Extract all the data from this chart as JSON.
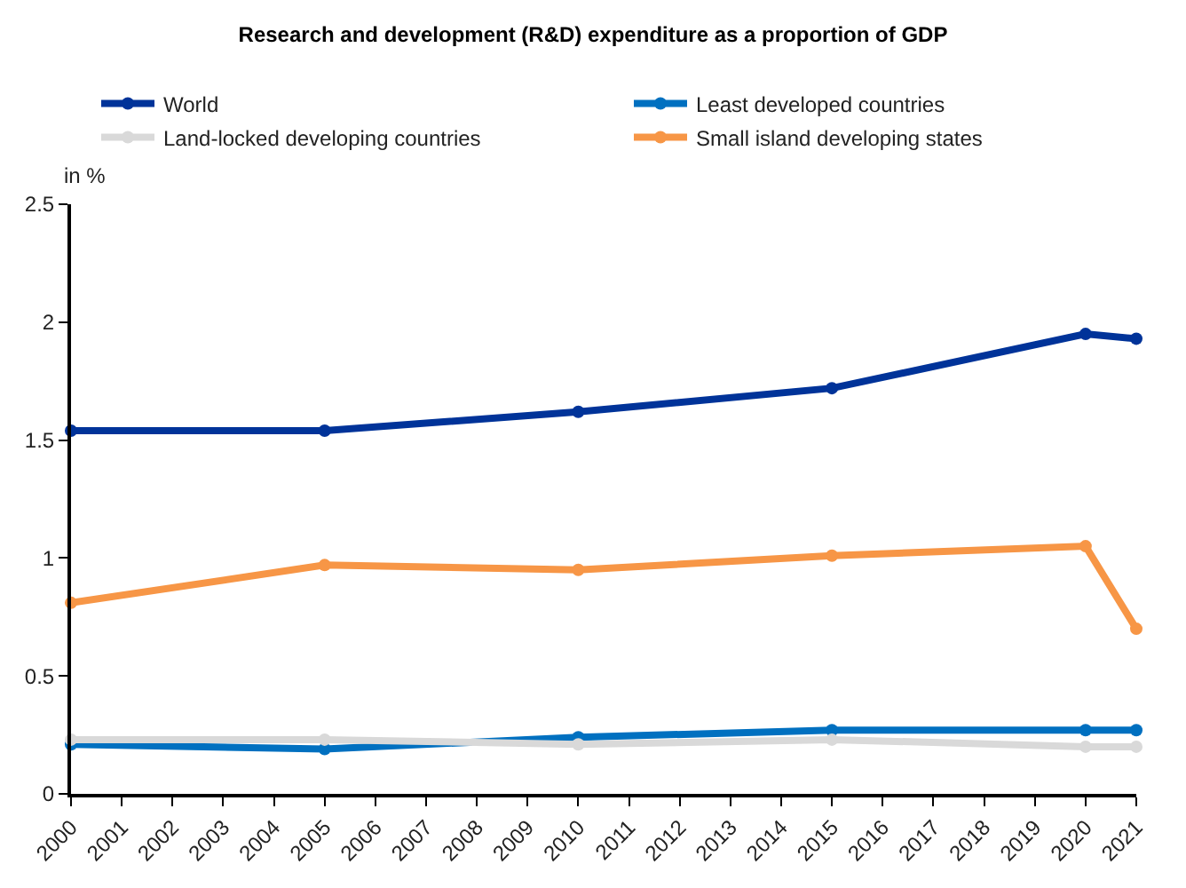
{
  "chart_data": {
    "type": "line",
    "title": "Research and development (R&D) expenditure as a proportion of GDP",
    "ylabel": "in %",
    "x": [
      2000,
      2005,
      2010,
      2015,
      2020,
      2021
    ],
    "series": [
      {
        "name": "World",
        "color": "#003399",
        "values": [
          1.54,
          1.54,
          1.62,
          1.72,
          1.95,
          1.93
        ]
      },
      {
        "name": "Least developed countries",
        "color": "#0070c0",
        "values": [
          0.21,
          0.19,
          0.24,
          0.27,
          0.27,
          0.27
        ]
      },
      {
        "name": "Land-locked developing countries",
        "color": "#d9d9d9",
        "values": [
          0.23,
          0.23,
          0.21,
          0.23,
          0.2,
          0.2
        ]
      },
      {
        "name": "Small island developing states",
        "color": "#f79646",
        "values": [
          0.81,
          0.97,
          0.95,
          1.01,
          1.05,
          0.7
        ]
      }
    ],
    "xlim": [
      2000,
      2021
    ],
    "xticks": [
      2000,
      2001,
      2002,
      2003,
      2004,
      2005,
      2006,
      2007,
      2008,
      2009,
      2010,
      2011,
      2012,
      2013,
      2014,
      2015,
      2016,
      2017,
      2018,
      2019,
      2020,
      2021
    ],
    "ylim": [
      0,
      2.5
    ],
    "yticks": [
      0,
      0.5,
      1,
      1.5,
      2,
      2.5
    ],
    "legend": "top",
    "marker": "circle",
    "line_style": "solid"
  }
}
